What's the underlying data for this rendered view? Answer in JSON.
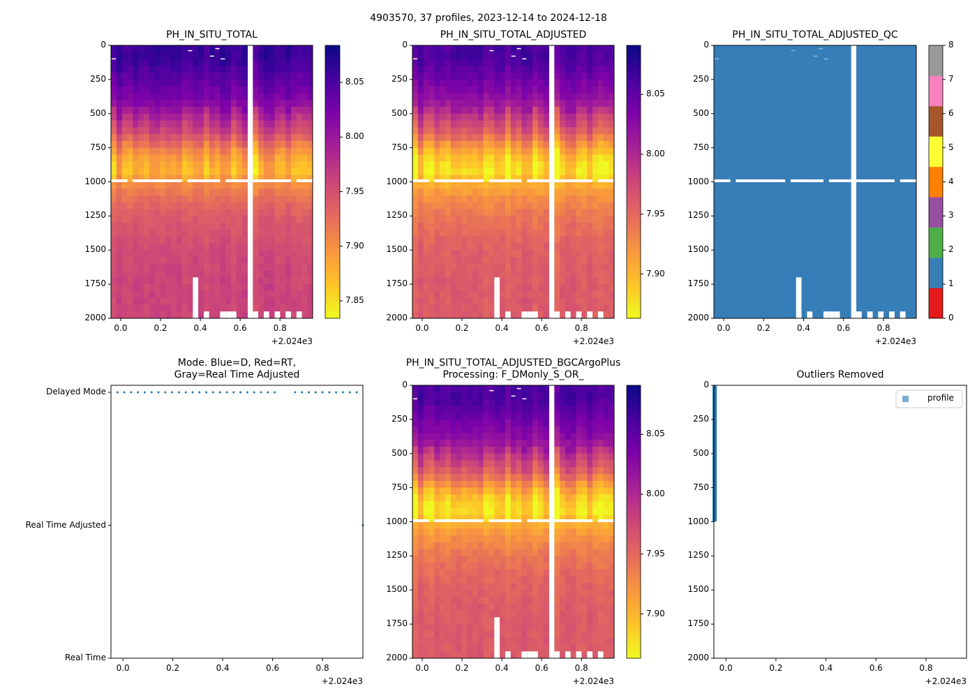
{
  "suptitle": "4903570, 37 profiles, 2023-12-14 to 2024-12-18",
  "x_offset_label": "+2.024e3",
  "chart_data": [
    {
      "type": "heatmap",
      "title": "PH_IN_SITU_TOTAL",
      "var": "ph",
      "clim": [
        7.834,
        8.084
      ],
      "cbar_ticks": [
        "7.85",
        "7.90",
        "7.95",
        "8.00",
        "8.05"
      ],
      "xlim": [
        -0.049,
        0.964
      ],
      "ylim": [
        2000,
        0
      ],
      "xticks": [
        "0.0",
        "0.2",
        "0.4",
        "0.6",
        "0.8"
      ],
      "yticks": [
        "0",
        "250",
        "500",
        "750",
        "1000",
        "1250",
        "1500",
        "1750",
        "2000"
      ]
    },
    {
      "type": "heatmap",
      "title": "PH_IN_SITU_TOTAL_ADJUSTED",
      "var": "ph",
      "clim": [
        7.863,
        8.091
      ],
      "cbar_ticks": [
        "7.90",
        "7.95",
        "8.00",
        "8.05"
      ],
      "xlim": [
        -0.049,
        0.964
      ],
      "ylim": [
        2000,
        0
      ],
      "xticks": [
        "0.0",
        "0.2",
        "0.4",
        "0.6",
        "0.8"
      ],
      "yticks": [
        "0",
        "250",
        "500",
        "750",
        "1000",
        "1250",
        "1500",
        "1750",
        "2000"
      ]
    },
    {
      "type": "heatmap",
      "title": "PH_IN_SITU_TOTAL_ADJUSTED_QC",
      "var": "qc",
      "qc_value": 1,
      "qc_colors": [
        "#e41a1c",
        "#377eb8",
        "#4daf4a",
        "#984ea3",
        "#ff7f00",
        "#ffff33",
        "#a65628",
        "#f781bf",
        "#999999"
      ],
      "cbar_ticks": [
        "0",
        "1",
        "2",
        "3",
        "4",
        "5",
        "6",
        "7",
        "8"
      ],
      "xlim": [
        -0.049,
        0.964
      ],
      "ylim": [
        2000,
        0
      ],
      "xticks": [
        "0.0",
        "0.2",
        "0.4",
        "0.6",
        "0.8"
      ],
      "yticks": [
        "0",
        "250",
        "500",
        "750",
        "1000",
        "1250",
        "1500",
        "1750",
        "2000"
      ]
    },
    {
      "type": "scatter",
      "title": "Mode. Blue=D, Red=RT,\nGray=Real Time Adjusted",
      "yticks": [
        "Delayed Mode",
        "Real Time Adjusted",
        "Real Time"
      ],
      "xlim": [
        -0.048,
        0.962
      ],
      "xticks": [
        "0.0",
        "0.2",
        "0.4",
        "0.6",
        "0.8"
      ],
      "color": "#1f77b4"
    },
    {
      "type": "heatmap",
      "title": "PH_IN_SITU_TOTAL_ADJUSTED_BGCArgoPlus\nProcessing: F_DMonly_S_OR_",
      "var": "ph",
      "clim": [
        7.863,
        8.091
      ],
      "cbar_ticks": [
        "7.90",
        "7.95",
        "8.00",
        "8.05"
      ],
      "xlim": [
        -0.049,
        0.964
      ],
      "ylim": [
        2000,
        0
      ],
      "xticks": [
        "0.0",
        "0.2",
        "0.4",
        "0.6",
        "0.8"
      ],
      "yticks": [
        "0",
        "250",
        "500",
        "750",
        "1000",
        "1250",
        "1500",
        "1750",
        "2000"
      ]
    },
    {
      "type": "bar",
      "title": "Outliers Removed",
      "legend": "profile",
      "legend_loc": "upper right",
      "color": "#1f77b4",
      "outlier_x": -0.045,
      "outlier_depth": [
        0,
        1000
      ],
      "xlim": [
        -0.048,
        0.962
      ],
      "ylim": [
        2000,
        0
      ],
      "xticks": [
        "0.0",
        "0.2",
        "0.4",
        "0.6",
        "0.8"
      ],
      "yticks": [
        "0",
        "250",
        "500",
        "750",
        "1000",
        "1250",
        "1500",
        "1750",
        "2000"
      ]
    }
  ],
  "profiles": {
    "start": -0.035,
    "step": 0.0274,
    "count": 38,
    "missing_index": 25,
    "rta_index": 37
  },
  "mean_profile": {
    "depth": [
      0,
      100,
      250,
      400,
      500,
      650,
      750,
      850,
      950,
      1000,
      1100,
      1250,
      1500,
      1750,
      2000
    ],
    "ph": [
      8.06,
      8.06,
      8.04,
      8.02,
      7.99,
      7.95,
      7.91,
      7.88,
      7.87,
      7.9,
      7.92,
      7.94,
      7.955,
      7.96,
      7.96
    ]
  },
  "gaps": [
    [
      15,
      1700,
      2000
    ],
    [
      17,
      1950,
      2000
    ],
    [
      20,
      1950,
      2000
    ],
    [
      21,
      1950,
      2000
    ],
    [
      22,
      1950,
      2000
    ],
    [
      26,
      1950,
      2000
    ],
    [
      28,
      1950,
      2000
    ],
    [
      30,
      1950,
      2000
    ],
    [
      32,
      1950,
      2000
    ],
    [
      34,
      1950,
      2000
    ]
  ],
  "surface_gaps": [
    [
      0,
      95,
      105
    ],
    [
      14,
      35,
      45
    ],
    [
      18,
      75,
      85
    ],
    [
      19,
      20,
      30
    ],
    [
      20,
      95,
      105
    ]
  ]
}
